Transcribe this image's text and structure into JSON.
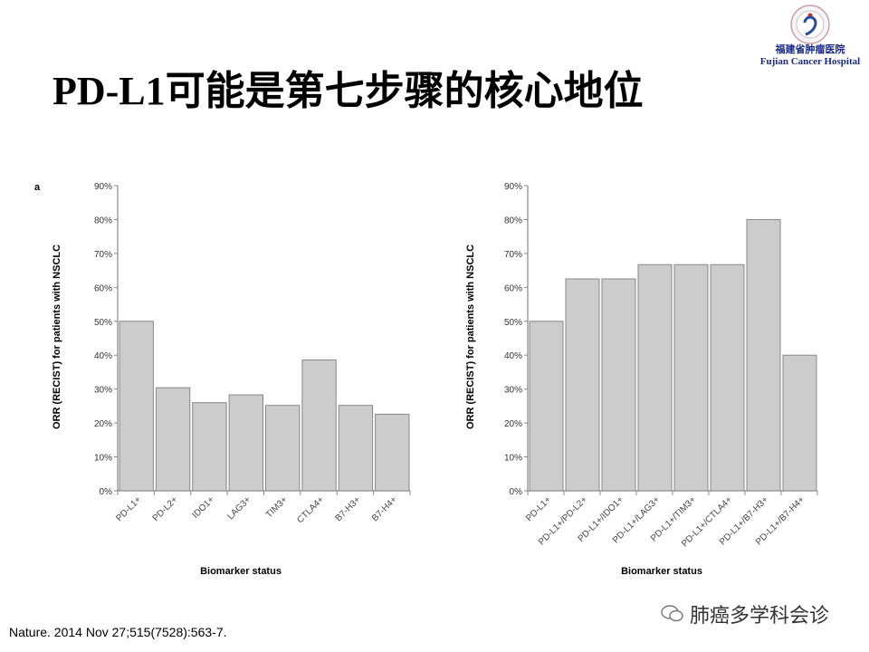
{
  "slide": {
    "title": "PD-L1可能是第七步骤的核心地位",
    "logo_cn": "福建省肿瘤医院",
    "logo_en": "Fujian Cancer Hospital",
    "citation": "Nature. 2014 Nov 27;515(7528):563-7.",
    "watermark": "肺癌多学科会诊"
  },
  "chart_data": [
    {
      "type": "bar",
      "panel_label": "a",
      "categories": [
        "PD-L1+",
        "PD-L2+",
        "IDO1+",
        "LAG3+",
        "TIM3+",
        "CTLA4+",
        "B7-H3+",
        "B7-H4+"
      ],
      "values": [
        50,
        30.4,
        26,
        28.3,
        25.2,
        38.6,
        25.2,
        22.6
      ],
      "xlabel": "Biomarker status",
      "ylabel": "ORR (RECIST) for patients with NSCLC",
      "ylim": [
        0,
        90
      ],
      "yticks": [
        "0%",
        "10%",
        "20%",
        "30%",
        "40%",
        "50%",
        "60%",
        "70%",
        "80%",
        "90%"
      ],
      "bar_color": "#cccccc"
    },
    {
      "type": "bar",
      "panel_label": "",
      "categories": [
        "PD-L1+",
        "PD-L1+/PD-L2+",
        "PD-L1+/IDO1+",
        "PD-L1+/LAG3+",
        "PD-L1+/TIM3+",
        "PD-L1+/CTLA4+",
        "PD-L1+/B7-H3+",
        "PD-L1+/B7-H4+"
      ],
      "values": [
        50,
        62.5,
        62.5,
        66.7,
        66.7,
        66.7,
        80,
        40
      ],
      "xlabel": "Biomarker status",
      "ylabel": "ORR (RECIST) for patients with NSCLC",
      "ylim": [
        0,
        90
      ],
      "yticks": [
        "0%",
        "10%",
        "20%",
        "30%",
        "40%",
        "50%",
        "60%",
        "70%",
        "80%",
        "90%"
      ],
      "bar_color": "#cccccc"
    }
  ]
}
